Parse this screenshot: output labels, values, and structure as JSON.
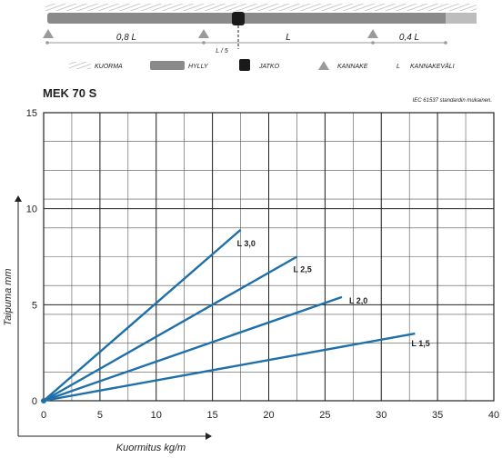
{
  "diagram": {
    "spans": {
      "left": "0,8 L",
      "middle": "L",
      "right": "0,4 L",
      "joint_offset": "L / 5"
    },
    "legend": [
      {
        "key": "kuorma",
        "label": "KUORMA"
      },
      {
        "key": "hylly",
        "label": "HYLLY"
      },
      {
        "key": "jatko",
        "label": "JATKO"
      },
      {
        "key": "kannake",
        "label": "KANNAKE"
      },
      {
        "key": "kannakevali",
        "symbol": "L",
        "label": "KANNAKEVÄLI"
      }
    ],
    "colors": {
      "shelf": "#8a8a8a",
      "hatch": "#b5b5b5",
      "joint": "#1a1a1a",
      "support": "#9a9a9a",
      "dim": "#999999"
    }
  },
  "chart_data": {
    "type": "line",
    "title": "MEK 70 S",
    "note": "IEC 61537 standardin mukainen.",
    "xlabel": "Kuormitus kg/m",
    "ylabel": "Taipuma mm",
    "xlim": [
      0,
      40
    ],
    "ylim": [
      0,
      15
    ],
    "xticks": [
      0,
      5,
      10,
      15,
      20,
      25,
      30,
      35,
      40
    ],
    "yticks": [
      0,
      5,
      10,
      15
    ],
    "grid": true,
    "grid_minor": {
      "x": 2.5,
      "y": 1.5
    },
    "line_color": "#1f6fa8",
    "series": [
      {
        "name": "L 3,0",
        "x": [
          0,
          17.5
        ],
        "y": [
          0,
          8.9
        ]
      },
      {
        "name": "L 2,5",
        "x": [
          0,
          22.5
        ],
        "y": [
          0,
          7.5
        ]
      },
      {
        "name": "L 2,0",
        "x": [
          0,
          26.5
        ],
        "y": [
          0,
          5.4
        ]
      },
      {
        "name": "L 1,5",
        "x": [
          0,
          33
        ],
        "y": [
          0,
          3.5
        ]
      }
    ]
  }
}
